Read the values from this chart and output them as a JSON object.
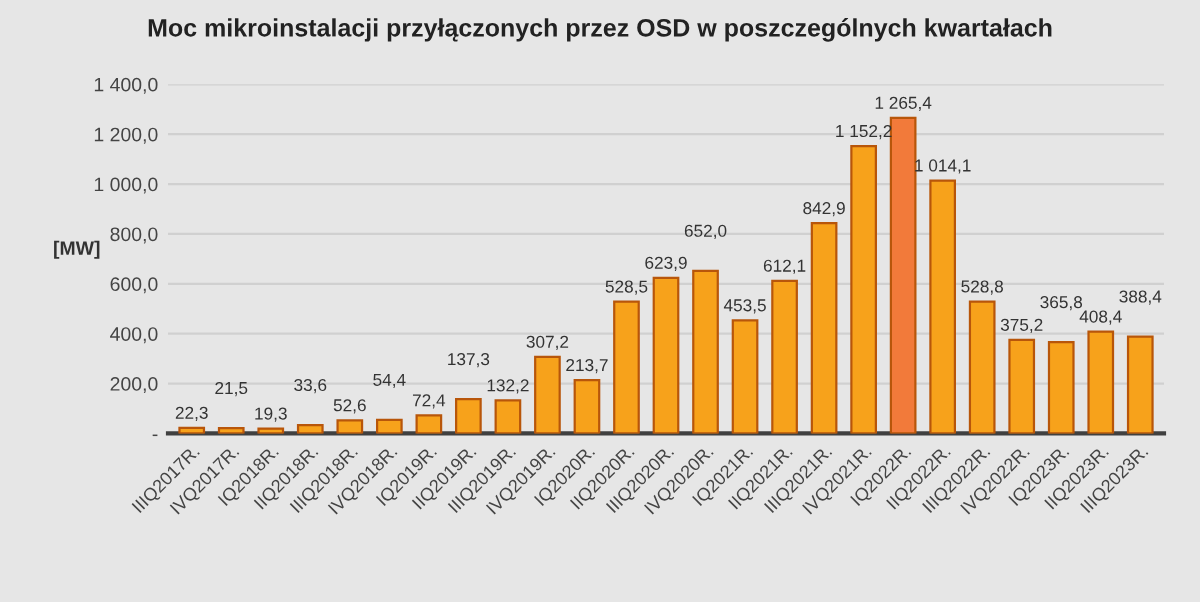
{
  "chart_data": {
    "type": "bar",
    "title": "Moc mikroinstalacji przyłączonych przez OSD w poszczególnych kwartałach",
    "ylabel": "[MW]",
    "categories": [
      "IIIQ2017R.",
      "IVQ2017R.",
      "IQ2018R.",
      "IIQ2018R.",
      "IIIQ2018R.",
      "IVQ2018R.",
      "IQ2019R.",
      "IIQ2019R.",
      "IIIQ2019R.",
      "IVQ2019R.",
      "IQ2020R.",
      "IIQ2020R.",
      "IIIQ2020R.",
      "IVQ2020R.",
      "IQ2021R.",
      "IIQ2021R.",
      "IIIQ2021R.",
      "IVQ2021R.",
      "IQ2022R.",
      "IIQ2022R.",
      "IIIQ2022R.",
      "IVQ2022R.",
      "IQ2023R.",
      "IIQ2023R.",
      "IIIQ2023R."
    ],
    "values": [
      22.3,
      21.5,
      19.3,
      33.6,
      52.6,
      54.4,
      72.4,
      137.3,
      132.2,
      307.2,
      213.7,
      528.5,
      623.9,
      652.0,
      453.5,
      612.1,
      842.9,
      1152.2,
      1265.4,
      1014.1,
      528.8,
      375.2,
      365.8,
      408.4,
      388.4
    ],
    "value_labels": [
      "22,3",
      "21,5",
      "19,3",
      "33,6",
      "52,6",
      "54,4",
      "72,4",
      "137,3",
      "132,2",
      "307,2",
      "213,7",
      "528,5",
      "623,9",
      "652,0",
      "453,5",
      "612,1",
      "842,9",
      "1 152,2",
      "1 265,4",
      "1 014,1",
      "528,8",
      "375,2",
      "365,8",
      "408,4",
      "388,4"
    ],
    "colors": [
      "#f7a21b",
      "#f7a21b",
      "#f7a21b",
      "#f7a21b",
      "#f7a21b",
      "#f7a21b",
      "#f7a21b",
      "#f7a21b",
      "#f7a21b",
      "#f7a21b",
      "#f7a21b",
      "#f7a21b",
      "#f7a21b",
      "#f7a21b",
      "#f7a21b",
      "#f7a21b",
      "#f7a21b",
      "#f7a21b",
      "#f27a3a",
      "#f7a21b",
      "#f7a21b",
      "#f7a21b",
      "#f7a21b",
      "#f7a21b",
      "#f7a21b"
    ],
    "ylim": [
      0,
      1400
    ],
    "yticks": [
      {
        "value": 0,
        "label": "-"
      },
      {
        "value": 200,
        "label": "200,0"
      },
      {
        "value": 400,
        "label": "400,0"
      },
      {
        "value": 600,
        "label": "600,0"
      },
      {
        "value": 800,
        "label": "800,0"
      },
      {
        "value": 1000,
        "label": "1 000,0"
      },
      {
        "value": 1200,
        "label": "1 200,0"
      },
      {
        "value": 1400,
        "label": "1 400,0"
      }
    ],
    "grid": "y",
    "legend": false
  }
}
